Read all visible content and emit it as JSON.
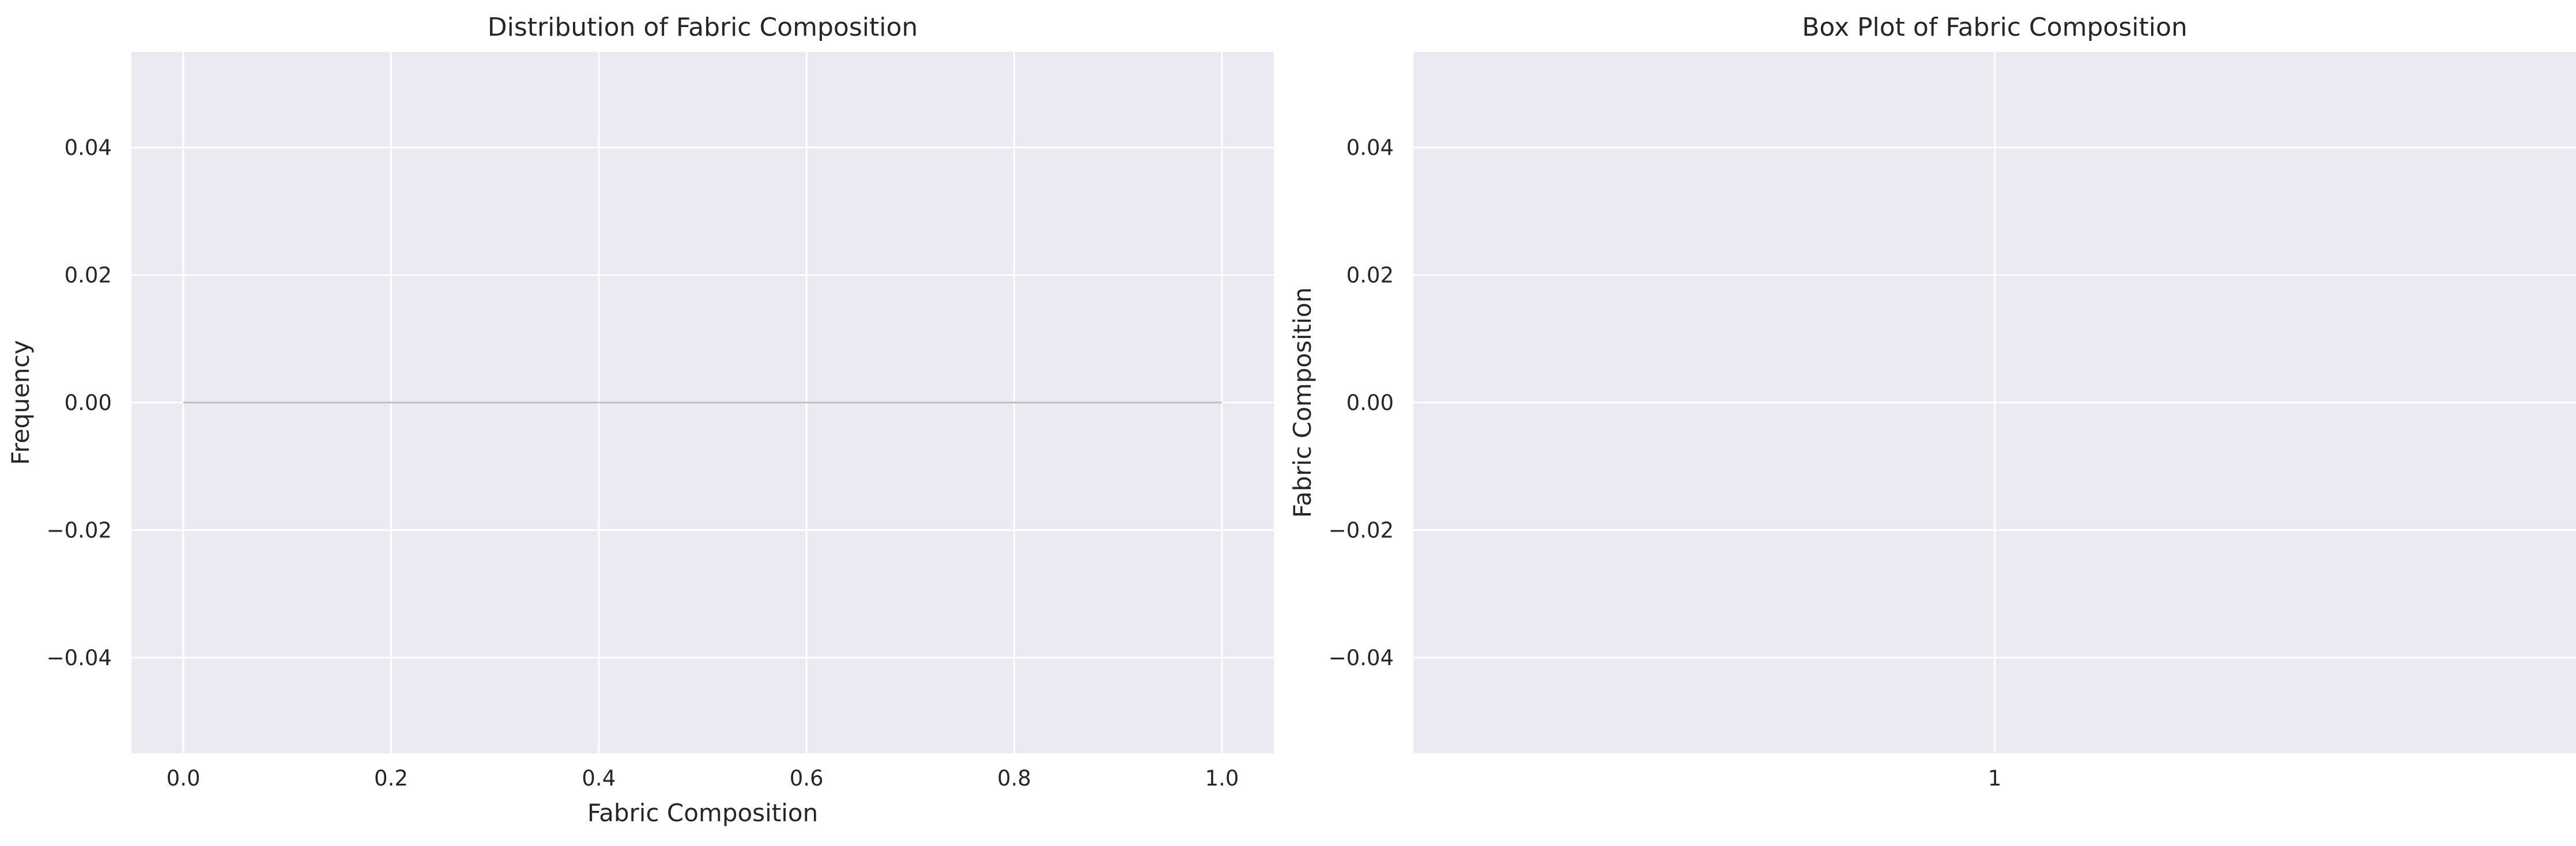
{
  "chart_data": [
    {
      "type": "histogram",
      "title": "Distribution of Fabric Composition",
      "xlabel": "Fabric Composition",
      "ylabel": "Frequency",
      "xlim": [
        -0.05,
        1.05
      ],
      "ylim": [
        -0.055,
        0.055
      ],
      "xticks": [
        0.0,
        0.2,
        0.4,
        0.6,
        0.8,
        1.0
      ],
      "xtick_labels": [
        "0.0",
        "0.2",
        "0.4",
        "0.6",
        "0.8",
        "1.0"
      ],
      "yticks": [
        0.04,
        0.02,
        0.0,
        -0.02,
        -0.04
      ],
      "ytick_labels": [
        "0.04",
        "0.02",
        "0.00",
        "−0.02",
        "−0.04"
      ],
      "grid": true,
      "series": [
        {
          "name": "Fabric Composition",
          "x": [
            0.0,
            1.0
          ],
          "values": [
            0.0,
            0.0
          ]
        }
      ]
    },
    {
      "type": "box",
      "title": "Box Plot of Fabric Composition",
      "xlabel": "",
      "ylabel": "Fabric Composition",
      "ylim": [
        -0.055,
        0.055
      ],
      "categories": [
        "1"
      ],
      "xtick_labels": [
        "1"
      ],
      "yticks": [
        0.04,
        0.02,
        0.0,
        -0.02,
        -0.04
      ],
      "ytick_labels": [
        "0.04",
        "0.02",
        "0.00",
        "−0.02",
        "−0.04"
      ],
      "grid": true,
      "series": [
        {
          "name": "Fabric Composition",
          "values": []
        }
      ]
    }
  ],
  "colors": {
    "axes_bg": "#eaeaf2",
    "grid": "#ffffff",
    "hist_line": "#c0c0c0",
    "text": "#262626"
  }
}
